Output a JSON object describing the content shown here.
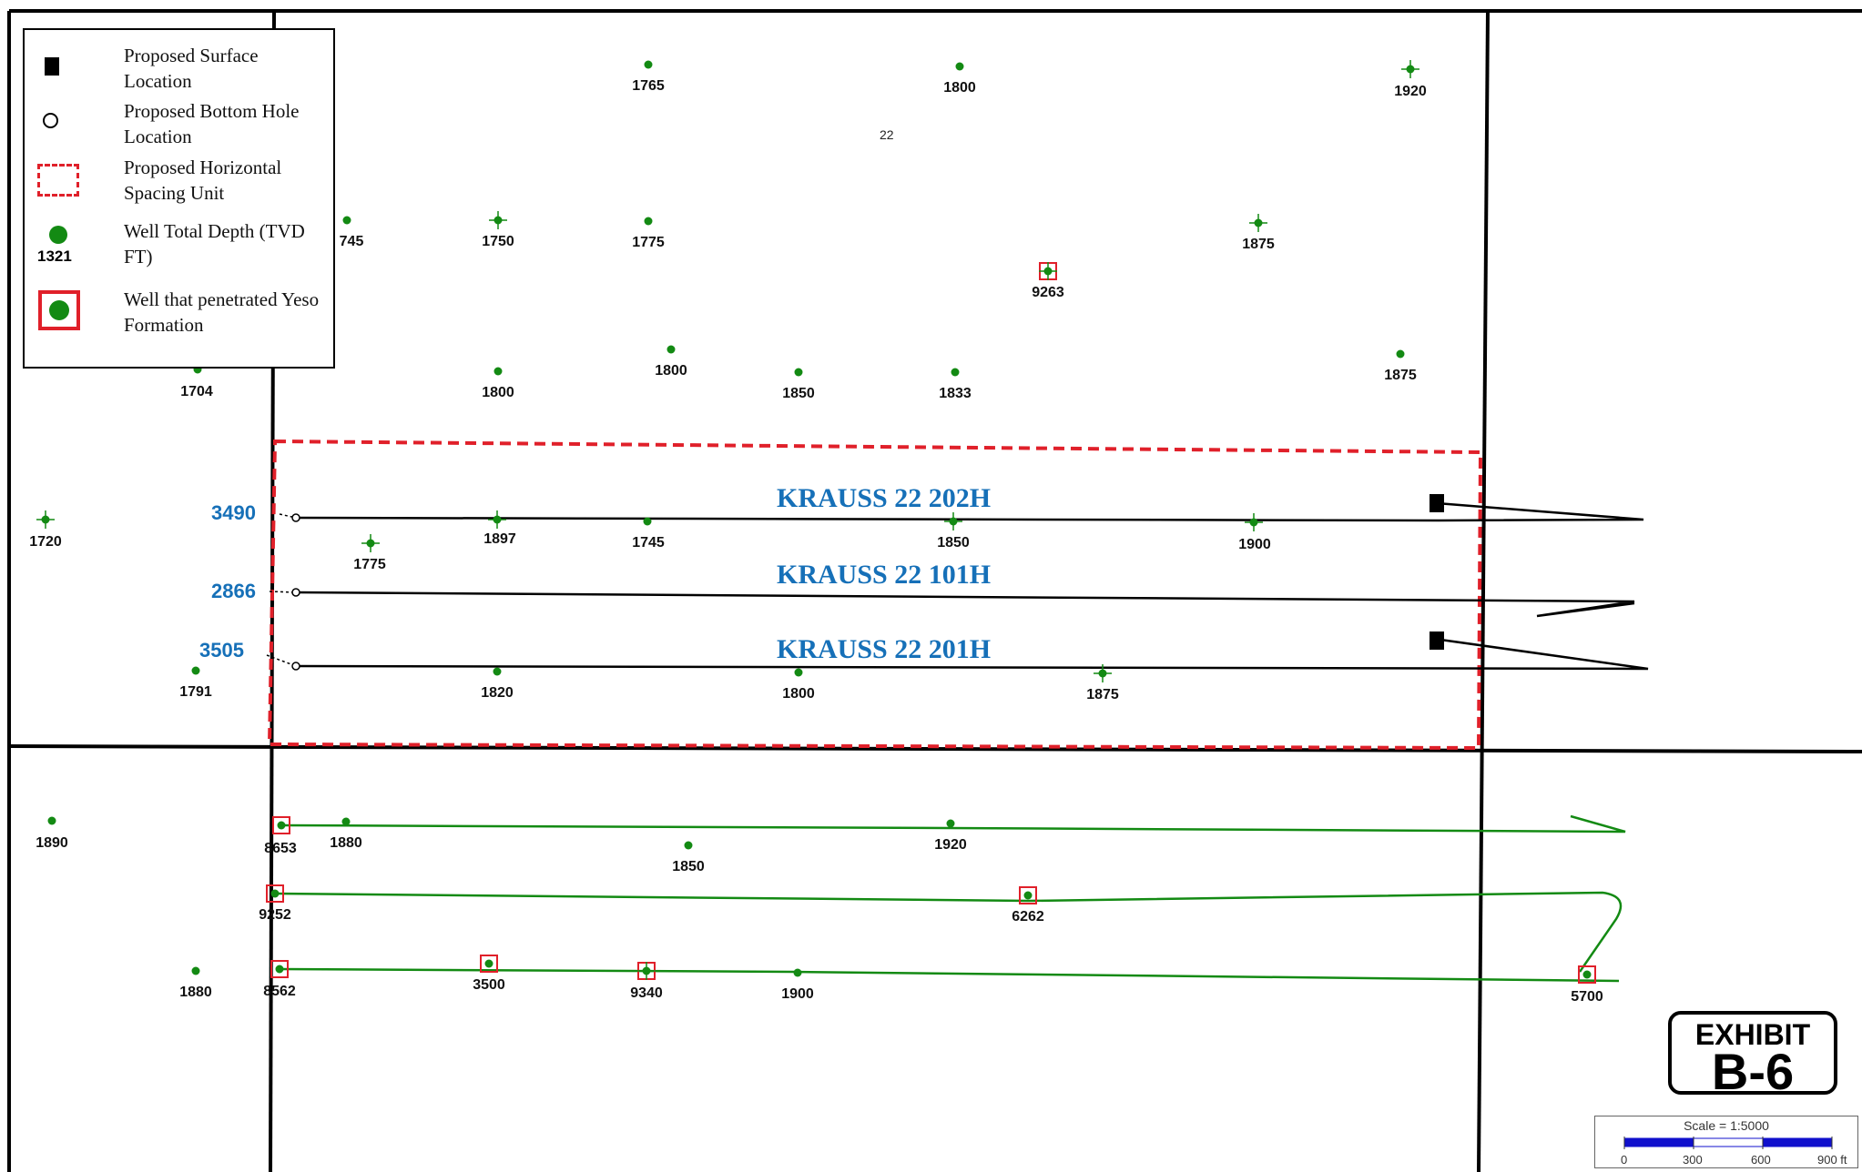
{
  "legend": {
    "items": [
      {
        "label": "Proposed Surface Location",
        "icon": "black-square"
      },
      {
        "label": "Proposed Bottom Hole Location",
        "icon": "open-circle"
      },
      {
        "label": "Proposed Horizontal Spacing Unit",
        "icon": "red-dashed-rectangle"
      },
      {
        "label": "Well Total Depth (TVD FT)",
        "icon": "green-dot",
        "sample_value": "1321"
      },
      {
        "label": "Well that penetrated Yeso Formation",
        "icon": "green-dot-red-box"
      }
    ]
  },
  "section_label": "22",
  "well_names": [
    "KRAUSS 22 202H",
    "KRAUSS 22 101H",
    "KRAUSS 22 201H"
  ],
  "measured_depths": [
    "3490",
    "2866",
    "3505"
  ],
  "depth_labels": [
    "1765",
    "1800",
    "1920",
    "745",
    "1750",
    "1775",
    "1875",
    "9263",
    "1704",
    "1800",
    "1800",
    "1850",
    "1833",
    "1875",
    "1720",
    "1897",
    "1745",
    "1850",
    "1900",
    "1775",
    "1791",
    "1820",
    "1800",
    "1875",
    "1890",
    "8653",
    "1880",
    "1850",
    "1920",
    "9252",
    "6262",
    "1880",
    "8562",
    "3500",
    "9340",
    "1900",
    "5700"
  ],
  "exhibit": {
    "line1": "EXHIBIT",
    "line2": "B-6"
  },
  "scale": {
    "title": "Scale = 1:5000",
    "ticks": [
      "0",
      "300",
      "600",
      "900 ft"
    ]
  },
  "colors": {
    "well": "#138a13",
    "unit_border": "#e0202a",
    "label_blue": "#1670b8",
    "yeso_box": "#e0202a"
  }
}
